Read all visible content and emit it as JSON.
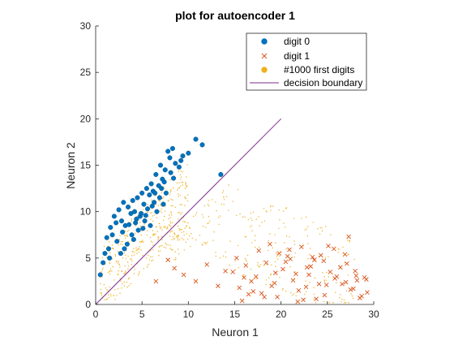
{
  "chart_data": {
    "type": "scatter",
    "title": "plot for autoencoder 1",
    "xlabel": "Neuron 1",
    "ylabel": "Neuron 2",
    "xlim": [
      0,
      30
    ],
    "ylim": [
      0,
      30
    ],
    "xticks": [
      "0",
      "5",
      "10",
      "15",
      "20",
      "25",
      "30"
    ],
    "yticks": [
      "0",
      "5",
      "10",
      "15",
      "20",
      "25",
      "30"
    ],
    "grid": false,
    "legend_position": "top-right",
    "colors": {
      "digit0": "#0072BD",
      "digit1": "#D95319",
      "first1000": "#EDB120",
      "boundary": "#7E2F8E"
    },
    "series": [
      {
        "name": "digit 0",
        "marker": "filled-circle",
        "x": [
          0.5,
          0.8,
          1.0,
          1.2,
          1.4,
          1.6,
          1.8,
          2.0,
          2.2,
          2.5,
          2.8,
          3.0,
          3.2,
          3.5,
          3.8,
          4.0,
          4.2,
          4.5,
          4.8,
          5.0,
          5.2,
          5.5,
          5.8,
          6.0,
          6.2,
          6.5,
          6.8,
          7.0,
          7.2,
          7.5,
          7.8,
          8.0,
          8.3,
          8.6,
          9.0,
          9.4,
          10.0,
          10.8,
          11.5,
          13.5,
          2.7,
          3.4,
          4.1,
          4.6,
          5.3,
          5.9,
          6.6,
          7.3,
          1.5,
          2.3,
          3.6,
          4.4,
          5.6,
          6.3,
          7.6,
          8.4,
          2.9,
          4.9,
          6.9,
          3.1,
          3.9,
          4.3,
          5.4,
          6.1,
          7.1,
          8.1,
          9.2,
          5.1,
          6.4,
          7.4
        ],
        "y": [
          3.2,
          4.5,
          5.5,
          7.2,
          6.0,
          8.3,
          7.5,
          9.5,
          8.8,
          10.2,
          9.0,
          11.0,
          8.5,
          10.5,
          9.8,
          11.2,
          10.0,
          11.5,
          9.5,
          12.0,
          10.8,
          12.5,
          11.8,
          13.0,
          12.2,
          14.0,
          12.8,
          15.0,
          13.5,
          14.5,
          16.5,
          15.8,
          16.8,
          15.2,
          14.8,
          16.0,
          16.3,
          17.8,
          17.2,
          14.0,
          5.5,
          6.5,
          7.0,
          8.0,
          9.0,
          8.5,
          10.0,
          10.8,
          5.0,
          6.8,
          8.6,
          9.2,
          10.3,
          11.0,
          12.0,
          13.6,
          7.8,
          9.8,
          11.5,
          6.0,
          7.5,
          8.8,
          9.6,
          10.6,
          12.5,
          14.2,
          15.5,
          8.2,
          12.0,
          13.2
        ]
      },
      {
        "name": "digit 1",
        "marker": "x",
        "x": [
          14.8,
          15.5,
          16.2,
          16.8,
          17.3,
          17.9,
          18.4,
          19.0,
          19.6,
          20.2,
          20.7,
          21.3,
          21.9,
          22.4,
          23.0,
          23.6,
          24.1,
          24.7,
          25.3,
          25.8,
          26.4,
          27.0,
          27.5,
          28.1,
          28.7,
          29.2,
          7.8,
          8.5,
          9.5,
          10.8,
          12.0,
          13.2,
          14.0,
          15.2,
          16.0,
          17.0,
          18.2,
          19.3,
          20.5,
          21.6,
          22.7,
          23.8,
          24.9,
          26.0,
          27.1,
          28.2,
          29.3,
          15.8,
          17.6,
          19.8,
          21.0,
          22.2,
          23.4,
          24.6,
          25.7,
          26.9,
          28.0,
          29.0,
          18.8,
          20.9,
          23.2,
          25.1,
          27.3,
          16.5,
          19.4,
          22.8,
          24.3,
          26.6,
          28.5,
          21.8,
          27.8,
          6.5
        ],
        "y": [
          3.5,
          1.8,
          4.2,
          2.5,
          3.0,
          1.2,
          4.5,
          2.0,
          0.8,
          3.8,
          5.2,
          2.6,
          1.5,
          0.5,
          3.2,
          4.8,
          2.2,
          1.0,
          3.5,
          2.8,
          4.0,
          2.4,
          1.6,
          3.1,
          0.9,
          2.7,
          4.8,
          3.9,
          3.2,
          2.5,
          4.3,
          2.0,
          3.6,
          5.0,
          2.9,
          1.4,
          0.8,
          2.3,
          4.6,
          3.3,
          1.9,
          0.6,
          2.1,
          3.0,
          4.4,
          2.6,
          1.3,
          0.4,
          5.8,
          5.5,
          4.9,
          6.2,
          5.1,
          4.7,
          6.0,
          5.4,
          3.6,
          2.9,
          6.5,
          5.9,
          4.1,
          6.3,
          7.3,
          1.1,
          3.4,
          4.0,
          5.3,
          2.2,
          0.7,
          0.3,
          1.7,
          2.5
        ]
      },
      {
        "name": "#1000 first digits",
        "marker": "dot",
        "x": [],
        "y": []
      },
      {
        "name": "decision boundary",
        "type": "line",
        "x": [
          0,
          20
        ],
        "y": [
          0,
          20
        ]
      }
    ]
  }
}
